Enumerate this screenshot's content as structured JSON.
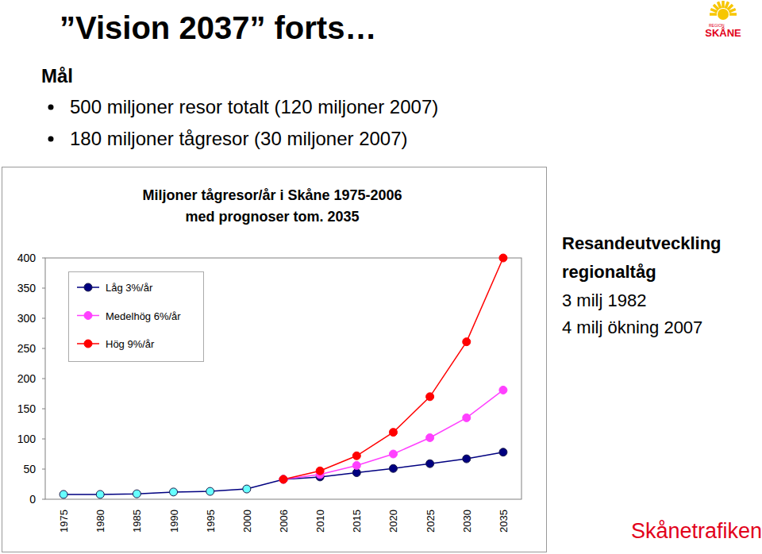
{
  "slide": {
    "title": "”Vision 2037” forts…",
    "heading": "Mål",
    "bullets": [
      "500 miljoner resor totalt (120 miljoner 2007)",
      "180 miljoner tågresor (30 miljoner 2007)"
    ],
    "logo_small": "REGION",
    "logo_text": "SKÅNE",
    "footer": "Skånetrafiken"
  },
  "chart_data": {
    "type": "line",
    "title": "Miljoner tågresor/år i Skåne 1975-2006",
    "subtitle": "med prognoser tom. 2035",
    "categories": [
      "1975",
      "1980",
      "1985",
      "1990",
      "1995",
      "2000",
      "2006",
      "2010",
      "2015",
      "2020",
      "2025",
      "2030",
      "2035"
    ],
    "series": [
      {
        "name": "Låg 3%/år",
        "color": "#000080",
        "marker": "circle",
        "colors": [
          "#66ffff",
          "#66ffff",
          "#66ffff",
          "#66ffff",
          "#66ffff",
          "#66ffff",
          "#000080",
          "#000080",
          "#000080",
          "#000080",
          "#000080",
          "#000080",
          "#000080"
        ],
        "values": [
          8,
          8,
          9,
          12,
          13,
          17,
          33,
          37,
          44,
          51,
          59,
          67,
          78
        ]
      },
      {
        "name": "Medelhög 6%/år",
        "color": "#ff40ff",
        "marker": "circle",
        "values": [
          null,
          null,
          null,
          null,
          null,
          null,
          33,
          41,
          56,
          75,
          102,
          135,
          181
        ]
      },
      {
        "name": "Hög 9%/år",
        "color": "#ff0000",
        "marker": "circle",
        "values": [
          null,
          null,
          null,
          null,
          null,
          null,
          33,
          47,
          72,
          111,
          170,
          261,
          400
        ]
      }
    ],
    "ylim": [
      0,
      400
    ],
    "yticks": [
      0,
      50,
      100,
      150,
      200,
      250,
      300,
      350,
      400
    ],
    "grid": false,
    "legend": "upper left",
    "annotation": {
      "title": [
        "Resandeutveckling",
        "regionaltåg"
      ],
      "lines": [
        "3 milj 1982",
        "4 milj ökning 2007"
      ]
    }
  }
}
